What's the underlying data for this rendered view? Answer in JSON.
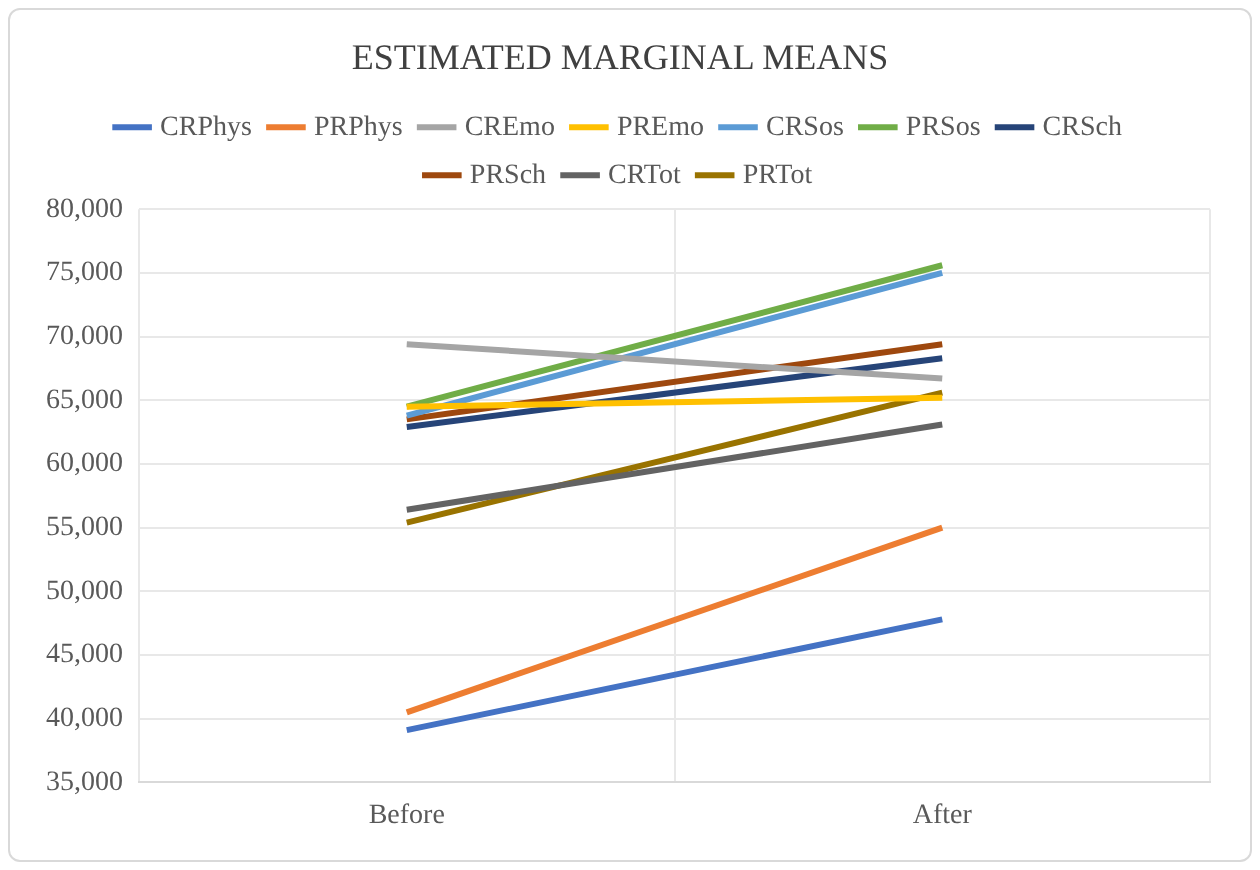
{
  "chart_data": {
    "type": "line",
    "title": "ESTIMATED MARGINAL MEANS",
    "categories": [
      "Before",
      "After"
    ],
    "series": [
      {
        "name": "CRPhys",
        "color": "#4472c4",
        "values": [
          39100,
          47800
        ]
      },
      {
        "name": "PRPhys",
        "color": "#ed7d31",
        "values": [
          40500,
          55000
        ]
      },
      {
        "name": "CREmo",
        "color": "#a5a5a5",
        "values": [
          69400,
          66700
        ]
      },
      {
        "name": "PREmo",
        "color": "#ffc000",
        "values": [
          64500,
          65200
        ]
      },
      {
        "name": "CRSos",
        "color": "#5b9bd5",
        "values": [
          63800,
          75000
        ]
      },
      {
        "name": "PRSos",
        "color": "#70ad47",
        "values": [
          64500,
          75600
        ]
      },
      {
        "name": "CRSch",
        "color": "#264478",
        "values": [
          62900,
          68300
        ]
      },
      {
        "name": "PRSch",
        "color": "#9e480e",
        "values": [
          63500,
          69400
        ]
      },
      {
        "name": "CRTot",
        "color": "#636363",
        "values": [
          56400,
          63100
        ]
      },
      {
        "name": "PRTot",
        "color": "#997300",
        "values": [
          55400,
          65600
        ]
      }
    ],
    "ylim": [
      35000,
      80000
    ],
    "yticks": [
      {
        "value": 35000,
        "label": "35,000"
      },
      {
        "value": 40000,
        "label": "40,000"
      },
      {
        "value": 45000,
        "label": "45,000"
      },
      {
        "value": 50000,
        "label": "50,000"
      },
      {
        "value": 55000,
        "label": "55,000"
      },
      {
        "value": 60000,
        "label": "60,000"
      },
      {
        "value": 65000,
        "label": "65,000"
      },
      {
        "value": 70000,
        "label": "70,000"
      },
      {
        "value": 75000,
        "label": "75,000"
      },
      {
        "value": 80000,
        "label": "80,000"
      }
    ],
    "grid": true,
    "legend": "top",
    "marker": "none",
    "line_style": "solid"
  }
}
